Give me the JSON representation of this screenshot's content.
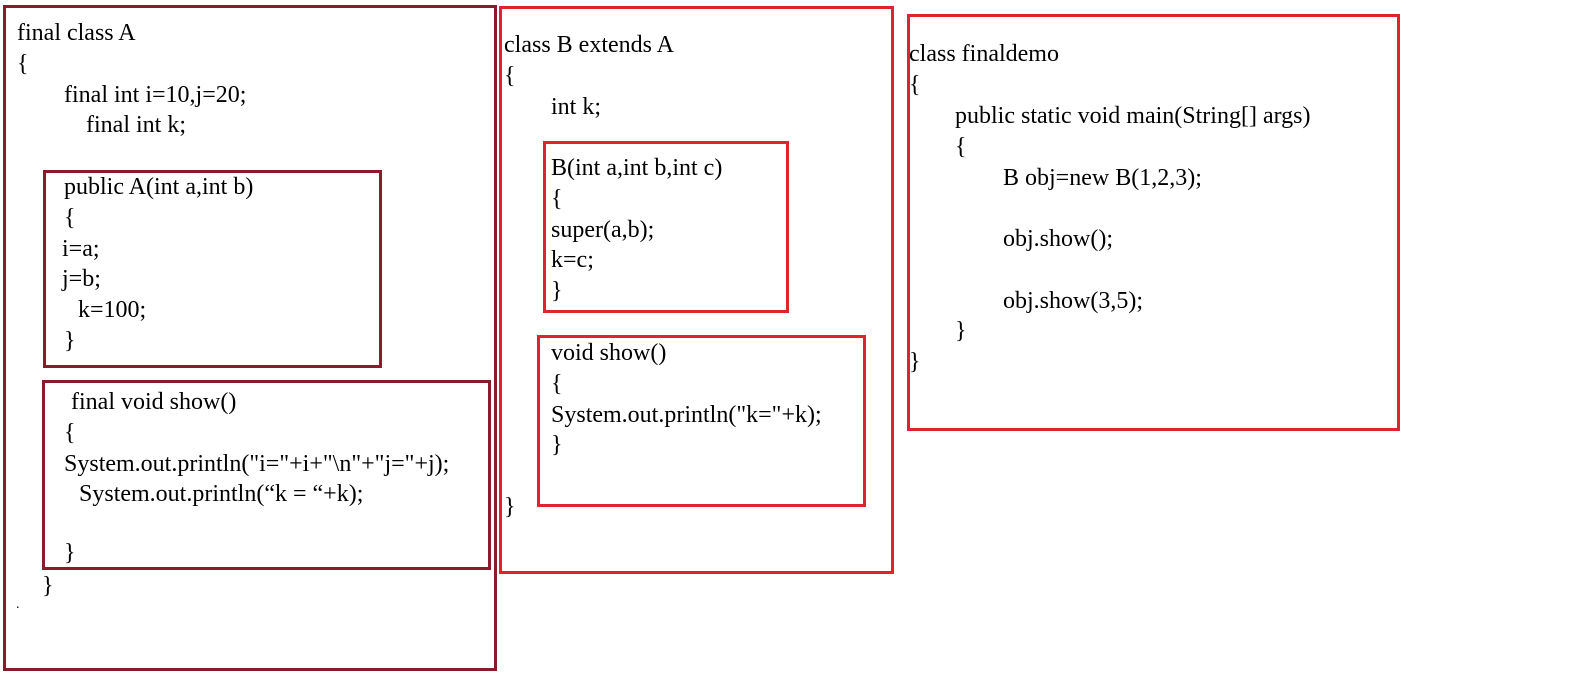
{
  "class_a": {
    "header": [
      "final class A",
      "{"
    ],
    "fields": [
      "final int i=10,j=20;",
      "final int k;"
    ],
    "constructor": [
      "public A(int a,int b)",
      "{",
      "i=a;",
      "j=b;",
      "k=100;",
      "}"
    ],
    "show_method": [
      "final void show()",
      "{",
      "System.out.println(\"i=\"+i+\"\\n\"+\"j=\"+j);",
      "System.out.println(“k = “+k);",
      "}"
    ],
    "close": "}",
    "trailing_mark": "."
  },
  "class_b": {
    "header": [
      "class B extends A",
      "{"
    ],
    "fields": [
      "int k;"
    ],
    "constructor": [
      "B(int a,int b,int c)",
      "{",
      "super(a,b);",
      "k=c;",
      "}"
    ],
    "show_method": [
      "void show()",
      "{",
      "System.out.println(\"k=\"+k);",
      "}"
    ],
    "close": "}"
  },
  "class_demo": {
    "lines": [
      "class finaldemo",
      "{",
      "public static void main(String[] args)",
      "{",
      "B obj=new B(1,2,3);",
      "obj.show();",
      "obj.show(3,5);",
      "}",
      "}"
    ]
  },
  "colors": {
    "dark_border": "#8b1a2b",
    "red_border": "#e0242e",
    "text": "#000000",
    "background": "#ffffff"
  }
}
